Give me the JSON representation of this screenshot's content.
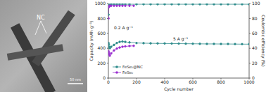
{
  "image": {
    "annotation": "NC",
    "scale_bar": "50 nm"
  },
  "chart_data": {
    "type": "line",
    "x_label": "Cycle number",
    "y_label": "Capacity (mAh g⁻¹)",
    "y2_label": "Coulombic efficiency (%)",
    "annotations": [
      "0.2 A g⁻¹",
      "5 A g⁻¹"
    ],
    "xlim": [
      0,
      1000
    ],
    "xticks": [
      0,
      200,
      400,
      600,
      800,
      1000
    ],
    "ylim": [
      0,
      1000
    ],
    "yticks": [
      0,
      200,
      400,
      600,
      800,
      1000
    ],
    "y2lim": [
      0,
      100
    ],
    "y2ticks": [
      0,
      20,
      40,
      60,
      80,
      100
    ],
    "legend": "lower left",
    "series": [
      {
        "name": "FeSe₂@NC",
        "color": "#2e8b8b",
        "marker": "circle",
        "x": [
          1,
          3,
          5,
          10,
          20,
          40,
          60,
          80,
          100,
          120,
          150,
          200,
          250,
          300,
          350,
          400,
          450,
          500,
          550,
          600,
          650,
          700,
          750,
          800,
          850,
          900,
          950,
          1000
        ],
        "values": [
          470,
          450,
          420,
          400,
          420,
          445,
          470,
          485,
          490,
          485,
          478,
          470,
          468,
          466,
          465,
          464,
          463,
          462,
          461,
          460,
          459,
          458,
          458,
          457,
          457,
          456,
          455,
          455
        ]
      },
      {
        "color": "#2e8b8b",
        "axis": "y2",
        "marker": "circle",
        "x": [
          1,
          3,
          5,
          10,
          20,
          40,
          60,
          80,
          100,
          120,
          150,
          200,
          250,
          300,
          350,
          400,
          450,
          500,
          550,
          600,
          650,
          700,
          750,
          800,
          850,
          900,
          950,
          1000
        ],
        "values": [
          85,
          97,
          98,
          98,
          99,
          99,
          99,
          99,
          99,
          99,
          99,
          99,
          99,
          99,
          99,
          99,
          99,
          99,
          99,
          99,
          99,
          99,
          99,
          99,
          99,
          99,
          99,
          99
        ]
      },
      {
        "name": "FeSe₂",
        "color": "#9b30d0",
        "marker": "circle",
        "x": [
          1,
          3,
          5,
          10,
          20,
          40,
          60,
          80,
          100,
          120,
          150,
          180
        ],
        "values": [
          360,
          340,
          320,
          300,
          330,
          370,
          395,
          410,
          420,
          425,
          430,
          432
        ]
      },
      {
        "color": "#9b30d0",
        "axis": "y2",
        "marker": "circle",
        "x": [
          1,
          3,
          5,
          10,
          20,
          40,
          60,
          80,
          100,
          120,
          150,
          180
        ],
        "values": [
          80,
          95,
          96,
          97,
          97,
          97,
          97,
          97,
          97,
          97,
          97,
          97
        ]
      }
    ]
  }
}
